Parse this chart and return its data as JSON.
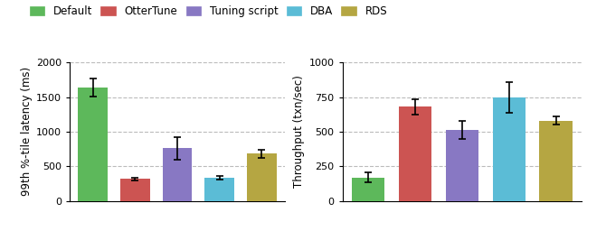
{
  "legend_labels": [
    "Default",
    "OtterTune",
    "Tuning script",
    "DBA",
    "RDS"
  ],
  "colors": [
    "#5db85b",
    "#cc5452",
    "#8878c3",
    "#5bbcd6",
    "#b5a642"
  ],
  "left_chart": {
    "ylabel": "99th %-tile latency (ms)",
    "ylim": [
      0,
      2000
    ],
    "yticks": [
      0,
      500,
      1000,
      1500,
      2000
    ],
    "bar_values": [
      1640,
      320,
      760,
      340,
      680
    ],
    "bar_errors": [
      130,
      20,
      160,
      25,
      55
    ]
  },
  "right_chart": {
    "ylabel": "Throughput (txn/sec)",
    "ylim": [
      0,
      1000
    ],
    "yticks": [
      0,
      250,
      500,
      750,
      1000
    ],
    "bar_values": [
      170,
      680,
      515,
      745,
      580
    ],
    "bar_errors": [
      35,
      55,
      65,
      110,
      30
    ]
  }
}
